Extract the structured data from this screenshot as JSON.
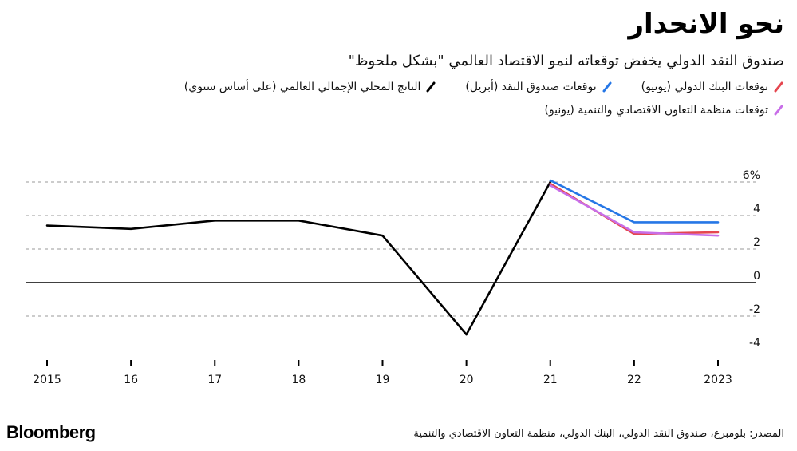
{
  "header": {
    "title": "نحو الانحدار",
    "subtitle": "صندوق النقد الدولي يخفض توقعاته لنمو الاقتصاد العالمي \"بشكل ملحوظ\""
  },
  "legend": [
    {
      "label": "توقعات البنك الدولي (يونيو)",
      "color": "#e5464f"
    },
    {
      "label": "توقعات صندوق النقد (أبريل)",
      "color": "#2677e6"
    },
    {
      "label": "الناتج المحلي الإجمالي العالمي (على أساس سنوي)",
      "color": "#000000"
    },
    {
      "label": "توقعات منظمة التعاون الاقتصادي والتنمية (يونيو)",
      "color": "#c86ee8"
    }
  ],
  "footer": {
    "source": "المصدر: بلومبرغ، صندوق النقد الدولي، البنك الدولي، منظمة التعاون الاقتصادي والتنمية",
    "brand": "Bloomberg"
  },
  "chart_data": {
    "type": "line",
    "x": [
      2015,
      2016,
      2017,
      2018,
      2019,
      2020,
      2021,
      2022,
      2023
    ],
    "x_tick_labels": [
      "2015",
      "16",
      "17",
      "18",
      "19",
      "20",
      "21",
      "22",
      "2023"
    ],
    "ylim": [
      -4,
      6
    ],
    "y_ticks": [
      6,
      4,
      2,
      0,
      -2,
      -4
    ],
    "y_tick_labels": [
      "6%",
      "4",
      "2",
      "0",
      "-2",
      "-4"
    ],
    "grid": "horizontal dashed",
    "series": [
      {
        "name": "الناتج المحلي الإجمالي العالمي (على أساس سنوي)",
        "color": "#000000",
        "x": [
          2015,
          2016,
          2017,
          2018,
          2019,
          2020,
          2021
        ],
        "values": [
          3.4,
          3.2,
          3.7,
          3.7,
          2.8,
          -3.1,
          6.0
        ]
      },
      {
        "name": "توقعات صندوق النقد (أبريل)",
        "color": "#2677e6",
        "x": [
          2021,
          2022,
          2023
        ],
        "values": [
          6.1,
          3.6,
          3.6
        ]
      },
      {
        "name": "توقعات البنك الدولي (يونيو)",
        "color": "#e5464f",
        "x": [
          2021,
          2022,
          2023
        ],
        "values": [
          5.9,
          2.9,
          3.0
        ]
      },
      {
        "name": "توقعات منظمة التعاون الاقتصادي والتنمية (يونيو)",
        "color": "#c86ee8",
        "x": [
          2021,
          2022,
          2023
        ],
        "values": [
          5.8,
          3.0,
          2.8
        ]
      }
    ]
  }
}
